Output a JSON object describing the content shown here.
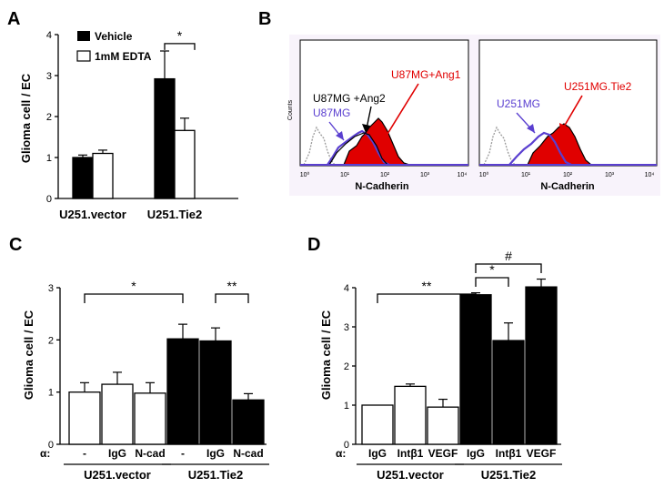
{
  "panels": {
    "A": {
      "letter": "A"
    },
    "B": {
      "letter": "B"
    },
    "C": {
      "letter": "C"
    },
    "D": {
      "letter": "D"
    }
  },
  "colors": {
    "black": "#000000",
    "white": "#ffffff",
    "red": "#e00000",
    "blue": "#5a3fd0",
    "gray": "#9a9a9a"
  },
  "chart_data": [
    {
      "panel": "A",
      "type": "bar",
      "ylabel": "Glioma cell / EC",
      "ylim": [
        0,
        4
      ],
      "yticks": [
        "0",
        "1",
        "2",
        "3",
        "4"
      ],
      "groups": [
        "U251.vector",
        "U251.Tie2"
      ],
      "series": [
        {
          "name": "Vehicle",
          "fill": "black",
          "values": [
            1.0,
            2.92
          ],
          "errors": [
            0.06,
            0.68
          ]
        },
        {
          "name": "1mM EDTA",
          "fill": "white",
          "values": [
            1.1,
            1.66
          ],
          "errors": [
            0.08,
            0.3
          ]
        }
      ],
      "annotations": [
        {
          "text": "*",
          "between": [
            "U251.Tie2 Vehicle",
            "U251.Tie2 1mM EDTA"
          ]
        }
      ]
    },
    {
      "panel": "B",
      "type": "histogram",
      "xlabel": "N-Cadherin",
      "ylabel": "Counts",
      "xscale": "log",
      "xticks": [
        "10⁰",
        "10¹",
        "10²",
        "10³",
        "10⁴"
      ],
      "subplots": [
        {
          "labels": [
            {
              "text": "U87MG+Ang1",
              "color": "red"
            },
            {
              "text": "U87MG +Ang2",
              "color": "black"
            },
            {
              "text": "U87MG",
              "color": "blue"
            }
          ]
        },
        {
          "labels": [
            {
              "text": "U251MG.Tie2",
              "color": "red"
            },
            {
              "text": "U251MG",
              "color": "blue"
            }
          ]
        }
      ]
    },
    {
      "panel": "C",
      "type": "bar",
      "ylabel": "Glioma cell / EC",
      "ylim": [
        0,
        3
      ],
      "yticks": [
        "0",
        "1",
        "2",
        "3"
      ],
      "alpha_label": "α:",
      "categories": [
        "-",
        "IgG",
        "N-cad",
        "-",
        "IgG",
        "N-cad"
      ],
      "groups": [
        {
          "name": "U251.vector",
          "span": [
            0,
            2
          ]
        },
        {
          "name": "U251.Tie2",
          "span": [
            3,
            5
          ]
        }
      ],
      "fills": [
        "white",
        "white",
        "white",
        "black",
        "black",
        "black"
      ],
      "values": [
        1.0,
        1.15,
        0.98,
        2.02,
        1.98,
        0.85
      ],
      "errors": [
        0.18,
        0.23,
        0.2,
        0.28,
        0.25,
        0.12
      ],
      "annotations": [
        {
          "text": "*",
          "between": [
            0,
            3
          ]
        },
        {
          "text": "**",
          "between": [
            4,
            5
          ]
        }
      ]
    },
    {
      "panel": "D",
      "type": "bar",
      "ylabel": "Glioma cell / EC",
      "ylim": [
        0,
        4
      ],
      "yticks": [
        "0",
        "1",
        "2",
        "3",
        "4"
      ],
      "alpha_label": "α:",
      "categories": [
        "IgG",
        "Intβ1",
        "VEGF",
        "IgG",
        "Intβ1",
        "VEGF"
      ],
      "groups": [
        {
          "name": "U251.vector",
          "span": [
            0,
            2
          ]
        },
        {
          "name": "U251.Tie2",
          "span": [
            3,
            5
          ]
        }
      ],
      "fills": [
        "white",
        "white",
        "white",
        "black",
        "black",
        "black"
      ],
      "values": [
        1.0,
        1.48,
        0.95,
        3.82,
        2.65,
        4.02
      ],
      "errors": [
        0.0,
        0.06,
        0.2,
        0.05,
        0.45,
        0.2
      ],
      "annotations": [
        {
          "text": "**",
          "between": [
            0,
            3
          ]
        },
        {
          "text": "*",
          "between": [
            3,
            4
          ]
        },
        {
          "text": "#",
          "between": [
            3,
            5
          ]
        }
      ]
    }
  ]
}
